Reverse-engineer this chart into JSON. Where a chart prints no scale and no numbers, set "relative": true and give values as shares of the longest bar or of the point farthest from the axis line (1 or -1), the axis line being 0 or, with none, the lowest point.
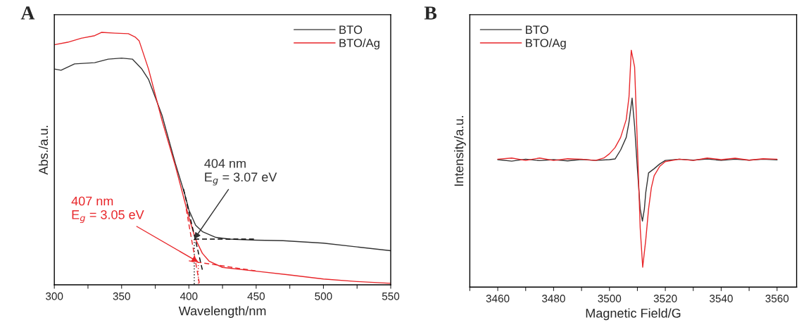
{
  "chart_data": [
    {
      "type": "line",
      "title": "A",
      "xlabel": "Wavelength/nm",
      "ylabel": "Abs./a.u.",
      "relative": true,
      "legend": "top right",
      "grid": false,
      "tick_labels": "x",
      "xlim": [
        300,
        550
      ],
      "xticks": [
        300,
        {
          "value": 325,
          "label": null
        },
        350,
        {
          "value": 375,
          "label": null
        },
        400,
        {
          "value": 425,
          "label": null
        },
        450,
        {
          "value": 475,
          "label": null
        },
        500,
        {
          "value": 525,
          "label": null
        },
        550
      ],
      "series": [
        {
          "name": "BTO",
          "color": "#333333",
          "x": [
            300,
            305,
            315,
            330,
            340,
            350,
            358,
            365,
            370,
            380,
            390,
            397,
            400,
            405,
            410,
            420,
            430,
            450,
            470,
            500,
            525,
            550
          ],
          "values": [
            0.855,
            0.85,
            0.875,
            0.88,
            0.894,
            0.898,
            0.894,
            0.855,
            0.814,
            0.672,
            0.48,
            0.358,
            0.297,
            0.236,
            0.211,
            0.188,
            0.181,
            0.177,
            0.175,
            0.165,
            0.15,
            0.135
          ]
        },
        {
          "name": "BTO/Ag",
          "color": "#e8262a",
          "x": [
            300,
            310,
            320,
            330,
            335,
            345,
            355,
            360,
            363,
            370,
            380,
            390,
            397,
            400,
            405,
            410,
            415,
            425,
            450,
            475,
            500,
            525,
            550
          ],
          "values": [
            0.951,
            0.961,
            0.977,
            0.987,
            1.0,
            0.997,
            0.995,
            0.982,
            0.967,
            0.855,
            0.652,
            0.47,
            0.328,
            0.267,
            0.18,
            0.125,
            0.094,
            0.069,
            0.054,
            0.039,
            0.023,
            0.013,
            0.006
          ]
        },
        {
          "color": "#000000",
          "line_style": "dashed",
          "x": [
            396,
            410
          ],
          "values": [
            0.38,
            0.06
          ]
        },
        {
          "color": "#000000",
          "line_style": "dashed",
          "x": [
            404,
            450
          ],
          "values": [
            0.181,
            0.181
          ]
        },
        {
          "color": "#000000",
          "line_style": "dotted",
          "x": [
            404,
            404
          ],
          "values": [
            0.181,
            0
          ]
        },
        {
          "color": "#e8262a",
          "line_style": "dashed",
          "x": [
            398,
            408
          ],
          "values": [
            0.3,
            0.0
          ]
        },
        {
          "color": "#e8262a",
          "line_style": "dashed",
          "x": [
            400,
            450
          ],
          "values": [
            0.095,
            0.055
          ]
        },
        {
          "color": "#e8262a",
          "line_style": "dotted",
          "x": [
            407,
            407
          ],
          "values": [
            0.09,
            0
          ]
        }
      ],
      "annotations": [
        {
          "text": "404 nm\nE$_{g}$ = 3.07 eV",
          "x": 404,
          "y": 0.181
        },
        {
          "text": "407 nm\nE$_{g}$ = 3.05 eV",
          "x": 407,
          "y": 0.09
        }
      ]
    },
    {
      "type": "line",
      "title": "B",
      "xlabel": "Magnetic Field/G",
      "ylabel": "Intensity/a.u.",
      "relative": true,
      "legend": "top left",
      "grid": false,
      "tick_labels": "x",
      "xlim": [
        3450,
        3567
      ],
      "xticks": [
        {
          "value": 3450,
          "label": null
        },
        3460,
        {
          "value": 3470,
          "label": null
        },
        3480,
        {
          "value": 3490,
          "label": null
        },
        3500,
        {
          "value": 3510,
          "label": null
        },
        3520,
        {
          "value": 3530,
          "label": null
        },
        3540,
        {
          "value": 3550,
          "label": null
        },
        3560
      ],
      "series": [
        {
          "name": "BTO",
          "color": "#333333",
          "x": [
            3460,
            3465,
            3470,
            3475,
            3480,
            3485,
            3490,
            3495,
            3500,
            3502,
            3504,
            3506,
            3507,
            3508.1,
            3509,
            3510,
            3511,
            3511.8,
            3512.5,
            3513,
            3514,
            3516,
            3518,
            3520,
            3525,
            3530,
            3535,
            3540,
            3545,
            3550,
            3555,
            3560
          ],
          "values": [
            0.538,
            0.532,
            0.54,
            0.534,
            0.538,
            0.533,
            0.539,
            0.535,
            0.538,
            0.541,
            0.579,
            0.632,
            0.697,
            0.798,
            0.68,
            0.5,
            0.33,
            0.279,
            0.33,
            0.4,
            0.482,
            0.5,
            0.52,
            0.535,
            0.54,
            0.536,
            0.541,
            0.535,
            0.54,
            0.536,
            0.54,
            0.537
          ]
        },
        {
          "name": "BTO/Ag",
          "color": "#e8262a",
          "x": [
            3460,
            3465,
            3470,
            3475,
            3480,
            3485,
            3490,
            3495,
            3498,
            3500,
            3502,
            3504,
            3506,
            3507,
            3507.8,
            3509,
            3510,
            3511,
            3511.9,
            3513,
            3514,
            3515,
            3516,
            3518,
            3520,
            3525,
            3530,
            3535,
            3540,
            3545,
            3550,
            3555,
            3560
          ],
          "values": [
            0.54,
            0.545,
            0.535,
            0.545,
            0.535,
            0.542,
            0.54,
            0.535,
            0.545,
            0.563,
            0.589,
            0.632,
            0.707,
            0.804,
            1.0,
            0.93,
            0.6,
            0.25,
            0.084,
            0.2,
            0.33,
            0.42,
            0.47,
            0.51,
            0.53,
            0.54,
            0.535,
            0.545,
            0.538,
            0.544,
            0.536,
            0.542,
            0.54
          ]
        }
      ]
    }
  ]
}
